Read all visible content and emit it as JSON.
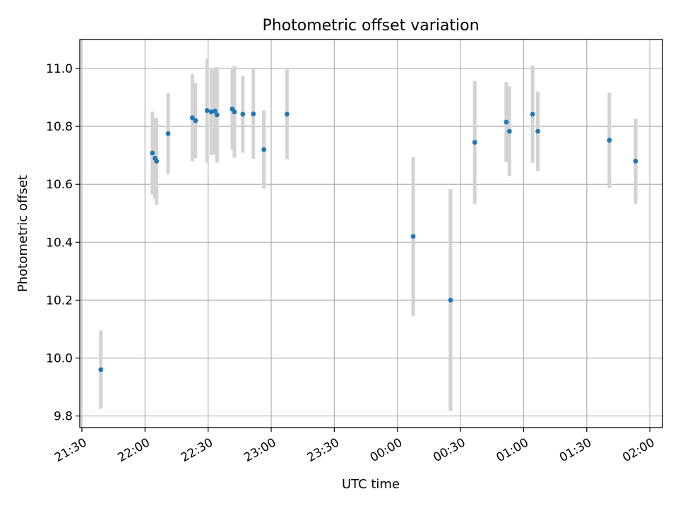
{
  "chart_data": {
    "type": "scatter",
    "title": "Photometric offset variation",
    "xlabel": "UTC time",
    "ylabel": "Photometric offset",
    "x_ticks": [
      "21:30",
      "22:00",
      "22:30",
      "23:00",
      "23:30",
      "00:00",
      "00:30",
      "01:00",
      "01:30",
      "02:00"
    ],
    "y_ticks": [
      "9.8",
      "10.0",
      "10.2",
      "10.4",
      "10.6",
      "10.8",
      "11.0"
    ],
    "xlim": [
      "21:29",
      "02:06"
    ],
    "ylim": [
      9.76,
      11.1
    ],
    "grid": true,
    "colors": {
      "point": "#1f77b4",
      "errorbar": "#d3d3d3",
      "grid": "#b0b0b0"
    },
    "points": [
      {
        "x": "21:39:00",
        "y": 9.96,
        "yerr": 0.135
      },
      {
        "x": "22:03:30",
        "y": 10.708,
        "yerr": 0.143
      },
      {
        "x": "22:04:45",
        "y": 10.69,
        "yerr": 0.14
      },
      {
        "x": "22:05:30",
        "y": 10.68,
        "yerr": 0.15
      },
      {
        "x": "22:11:00",
        "y": 10.775,
        "yerr": 0.14
      },
      {
        "x": "22:22:30",
        "y": 10.83,
        "yerr": 0.15
      },
      {
        "x": "22:24:00",
        "y": 10.82,
        "yerr": 0.13
      },
      {
        "x": "22:29:30",
        "y": 10.855,
        "yerr": 0.18
      },
      {
        "x": "22:31:30",
        "y": 10.85,
        "yerr": 0.15
      },
      {
        "x": "22:33:15",
        "y": 10.853,
        "yerr": 0.15
      },
      {
        "x": "22:34:15",
        "y": 10.84,
        "yerr": 0.165
      },
      {
        "x": "22:41:30",
        "y": 10.86,
        "yerr": 0.14
      },
      {
        "x": "22:42:30",
        "y": 10.85,
        "yerr": 0.158
      },
      {
        "x": "22:46:30",
        "y": 10.842,
        "yerr": 0.133
      },
      {
        "x": "22:51:30",
        "y": 10.843,
        "yerr": 0.155
      },
      {
        "x": "22:56:30",
        "y": 10.72,
        "yerr": 0.135
      },
      {
        "x": "23:07:30",
        "y": 10.842,
        "yerr": 0.155
      },
      {
        "x": "00:07:30",
        "y": 10.42,
        "yerr": 0.275
      },
      {
        "x": "00:25:15",
        "y": 10.2,
        "yerr": 0.383
      },
      {
        "x": "00:36:45",
        "y": 10.745,
        "yerr": 0.212
      },
      {
        "x": "00:51:45",
        "y": 10.815,
        "yerr": 0.138
      },
      {
        "x": "00:53:15",
        "y": 10.783,
        "yerr": 0.155
      },
      {
        "x": "01:04:15",
        "y": 10.842,
        "yerr": 0.168
      },
      {
        "x": "01:06:45",
        "y": 10.783,
        "yerr": 0.137
      },
      {
        "x": "01:40:45",
        "y": 10.752,
        "yerr": 0.165
      },
      {
        "x": "01:53:15",
        "y": 10.68,
        "yerr": 0.147
      }
    ]
  }
}
